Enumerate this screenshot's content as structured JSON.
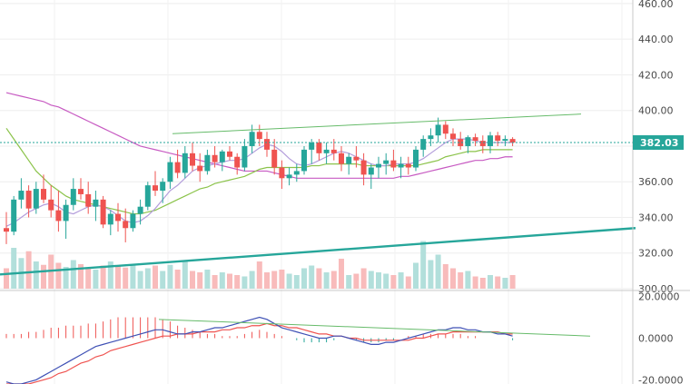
{
  "chart_data": [
    {
      "type": "candlestick",
      "title": "",
      "xlabel": "",
      "ylabel": "",
      "ylim": [
        300,
        462
      ],
      "grid": true,
      "y_ticks": [
        "460.00",
        "440.00",
        "420.00",
        "400.00",
        "380.00",
        "360.00",
        "340.00",
        "320.00",
        "300.00"
      ],
      "last_price_label": "382.03",
      "colors": {
        "up": "#26a69a",
        "down": "#ef5350",
        "volume_up": "#b2dfdb",
        "volume_down": "#f8bbbb",
        "ma_fast": "#b39ddb",
        "ma_mid": "#8bc34a",
        "ma_slow": "#c75ac2",
        "trendline": "#26a69a",
        "last_price": "#26a69a"
      },
      "candles": [
        [
          334,
          343,
          325,
          332
        ],
        [
          332,
          352,
          330,
          350
        ],
        [
          350,
          362,
          345,
          355
        ],
        [
          355,
          358,
          340,
          345
        ],
        [
          345,
          360,
          342,
          356
        ],
        [
          356,
          364,
          348,
          350
        ],
        [
          350,
          358,
          340,
          344
        ],
        [
          344,
          355,
          332,
          338
        ],
        [
          338,
          350,
          328,
          347
        ],
        [
          347,
          362,
          344,
          356
        ],
        [
          356,
          362,
          350,
          353
        ],
        [
          353,
          360,
          342,
          346
        ],
        [
          346,
          355,
          338,
          350
        ],
        [
          350,
          352,
          334,
          336
        ],
        [
          336,
          344,
          330,
          342
        ],
        [
          342,
          348,
          332,
          338
        ],
        [
          338,
          345,
          326,
          334
        ],
        [
          334,
          344,
          332,
          342
        ],
        [
          342,
          350,
          336,
          346
        ],
        [
          346,
          360,
          344,
          358
        ],
        [
          358,
          366,
          352,
          355
        ],
        [
          355,
          362,
          348,
          360
        ],
        [
          360,
          374,
          356,
          371
        ],
        [
          371,
          378,
          362,
          365
        ],
        [
          365,
          380,
          362,
          376
        ],
        [
          376,
          382,
          366,
          369
        ],
        [
          369,
          376,
          360,
          366
        ],
        [
          366,
          378,
          364,
          375
        ],
        [
          375,
          380,
          368,
          371
        ],
        [
          371,
          378,
          366,
          377
        ],
        [
          377,
          380,
          372,
          374
        ],
        [
          374,
          376,
          364,
          368
        ],
        [
          368,
          384,
          366,
          380
        ],
        [
          380,
          392,
          376,
          388
        ],
        [
          388,
          392,
          380,
          384
        ],
        [
          384,
          388,
          374,
          378
        ],
        [
          378,
          384,
          364,
          368
        ],
        [
          368,
          372,
          356,
          362
        ],
        [
          362,
          368,
          358,
          364
        ],
        [
          364,
          370,
          360,
          366
        ],
        [
          366,
          380,
          364,
          378
        ],
        [
          378,
          384,
          370,
          382
        ],
        [
          382,
          384,
          372,
          376
        ],
        [
          376,
          382,
          370,
          378
        ],
        [
          378,
          384,
          372,
          376
        ],
        [
          376,
          380,
          366,
          370
        ],
        [
          370,
          376,
          364,
          374
        ],
        [
          374,
          380,
          368,
          372
        ],
        [
          372,
          376,
          358,
          364
        ],
        [
          364,
          370,
          356,
          368
        ],
        [
          368,
          374,
          362,
          370
        ],
        [
          370,
          376,
          364,
          372
        ],
        [
          372,
          378,
          366,
          368
        ],
        [
          368,
          374,
          362,
          370
        ],
        [
          370,
          374,
          364,
          368
        ],
        [
          368,
          380,
          366,
          378
        ],
        [
          378,
          386,
          374,
          384
        ],
        [
          384,
          390,
          380,
          386
        ],
        [
          386,
          396,
          382,
          392
        ],
        [
          392,
          394,
          384,
          387
        ],
        [
          387,
          390,
          380,
          384
        ],
        [
          384,
          388,
          378,
          380
        ],
        [
          380,
          386,
          376,
          385
        ],
        [
          385,
          387,
          380,
          383
        ],
        [
          383,
          386,
          376,
          380
        ],
        [
          380,
          388,
          376,
          386
        ],
        [
          386,
          388,
          380,
          383
        ],
        [
          383,
          386,
          380,
          384
        ],
        [
          384,
          385,
          380,
          382.03
        ]
      ],
      "volume": [
        30,
        60,
        45,
        55,
        40,
        35,
        50,
        38,
        32,
        42,
        36,
        30,
        28,
        34,
        40,
        33,
        31,
        36,
        26,
        30,
        34,
        26,
        35,
        28,
        40,
        26,
        24,
        28,
        20,
        24,
        22,
        20,
        18,
        26,
        40,
        24,
        26,
        28,
        22,
        20,
        30,
        34,
        30,
        24,
        26,
        44,
        20,
        22,
        30,
        26,
        24,
        22,
        20,
        24,
        18,
        38,
        70,
        42,
        50,
        36,
        30,
        24,
        26,
        18,
        16,
        20,
        18,
        16,
        20
      ],
      "ma_fast": [
        335,
        337,
        340,
        343,
        345,
        347,
        348,
        346,
        343,
        342,
        344,
        346,
        347,
        346,
        344,
        341,
        338,
        337,
        338,
        341,
        345,
        350,
        355,
        358,
        362,
        366,
        368,
        369,
        370,
        371,
        372,
        372,
        373,
        376,
        379,
        381,
        380,
        377,
        373,
        370,
        369,
        370,
        372,
        374,
        376,
        377,
        376,
        374,
        372,
        370,
        369,
        369,
        370,
        370,
        370,
        371,
        373,
        376,
        379,
        382,
        384,
        384,
        384,
        383,
        382,
        382,
        382,
        382,
        382
      ],
      "ma_mid": [
        390,
        384,
        378,
        372,
        366,
        362,
        358,
        355,
        352,
        350,
        349,
        348,
        347,
        346,
        345,
        344,
        343,
        342,
        342,
        343,
        344,
        346,
        348,
        350,
        352,
        354,
        356,
        357,
        359,
        360,
        361,
        362,
        363,
        365,
        367,
        368,
        368,
        368,
        368,
        368,
        368,
        369,
        369,
        370,
        370,
        370,
        370,
        370,
        369,
        369,
        369,
        369,
        369,
        369,
        369,
        369,
        370,
        371,
        372,
        374,
        375,
        376,
        377,
        377,
        378,
        378,
        378,
        378,
        378
      ],
      "ma_slow": [
        410,
        409,
        408,
        407,
        406,
        405,
        403,
        402,
        400,
        398,
        396,
        394,
        392,
        390,
        388,
        386,
        384,
        382,
        380,
        379,
        378,
        377,
        376,
        375,
        374,
        373,
        372,
        371,
        370,
        369,
        368,
        367,
        366,
        366,
        366,
        366,
        365,
        364,
        363,
        362,
        362,
        362,
        362,
        362,
        362,
        362,
        362,
        362,
        362,
        362,
        362,
        362,
        362,
        363,
        363,
        364,
        365,
        366,
        367,
        368,
        369,
        370,
        371,
        372,
        372,
        373,
        373,
        374,
        374
      ],
      "upper_trendline": [
        [
          190,
          387
        ],
        [
          640,
          398
        ]
      ],
      "lower_trendline": [
        [
          0,
          308
        ],
        [
          700,
          334
        ]
      ]
    },
    {
      "type": "macd",
      "title": "",
      "ylim": [
        -22,
        22
      ],
      "y_ticks": [
        "20.0000",
        "0.0000",
        "-20.0000"
      ],
      "colors": {
        "macd": "#3f51b5",
        "signal": "#ef5350",
        "hist_pos": "#26a69a",
        "hist_neg": "#ef5350",
        "trendline": "#26a69a"
      },
      "macd": [
        -21,
        -22,
        -22,
        -21,
        -20,
        -18,
        -16,
        -14,
        -12,
        -10,
        -8,
        -6,
        -4,
        -3,
        -2,
        -1,
        0,
        1,
        2,
        3,
        4,
        4,
        3,
        2,
        2,
        3,
        3,
        4,
        5,
        5,
        6,
        7,
        8,
        9,
        10,
        9,
        7,
        5,
        4,
        3,
        2,
        1,
        0,
        0,
        1,
        1,
        0,
        -1,
        -2,
        -3,
        -3,
        -2,
        -2,
        -1,
        0,
        1,
        2,
        3,
        4,
        4,
        5,
        5,
        4,
        4,
        3,
        3,
        2,
        2,
        1
      ],
      "signal": [
        -22,
        -22,
        -22,
        -22,
        -21,
        -20,
        -19,
        -17,
        -16,
        -14,
        -12,
        -11,
        -9,
        -8,
        -6,
        -5,
        -4,
        -3,
        -2,
        -1,
        0,
        1,
        1,
        2,
        2,
        2,
        3,
        3,
        3,
        4,
        4,
        5,
        5,
        6,
        6,
        7,
        6,
        6,
        5,
        5,
        4,
        3,
        2,
        2,
        1,
        1,
        0,
        0,
        -1,
        -1,
        -1,
        -1,
        -1,
        -1,
        -1,
        0,
        0,
        1,
        2,
        2,
        3,
        3,
        3,
        3,
        3,
        3,
        3,
        2,
        2
      ],
      "histogram": [
        2,
        2,
        2,
        3,
        3,
        4,
        5,
        5,
        6,
        6,
        6,
        7,
        7,
        8,
        9,
        10,
        10,
        10,
        10,
        10,
        10,
        9,
        8,
        6,
        5,
        4,
        3,
        2,
        2,
        1,
        1,
        1,
        2,
        3,
        4,
        3,
        2,
        1,
        0,
        -1,
        -2,
        -2,
        -2,
        -2,
        -1,
        0,
        0,
        -1,
        -2,
        -2,
        -2,
        -1,
        -1,
        0,
        1,
        1,
        2,
        2,
        2,
        2,
        2,
        2,
        1,
        1,
        0,
        0,
        0,
        0,
        -1
      ],
      "trendline": [
        [
          175,
          9
        ],
        [
          650,
          1
        ]
      ]
    }
  ]
}
